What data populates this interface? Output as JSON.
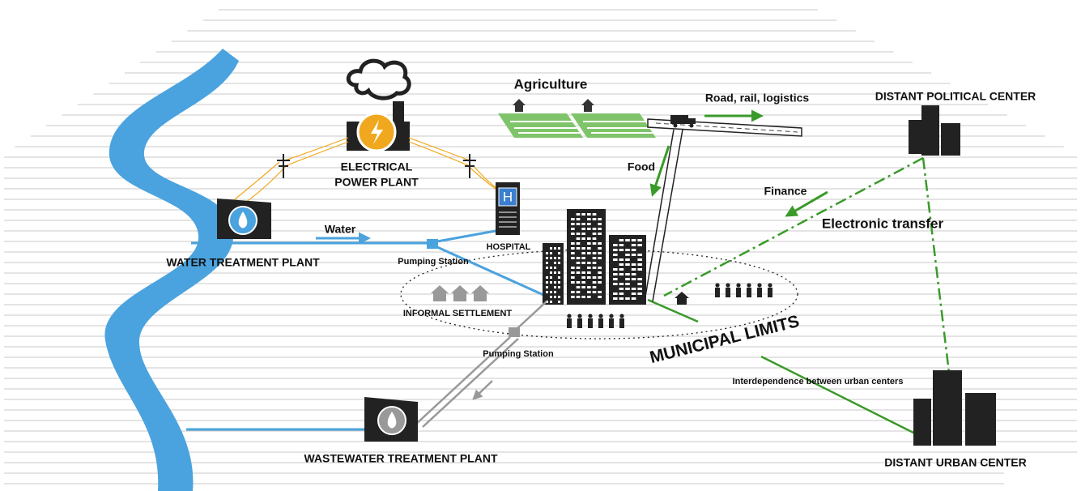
{
  "nodes": {
    "agriculture": "Agriculture",
    "road": "Road, rail, logistics",
    "political_center": "DISTANT POLITICAL CENTER",
    "power_plant": [
      "ELECTRICAL",
      "POWER PLANT"
    ],
    "hospital_sign": "H",
    "hospital": "HOSPITAL",
    "water_plant": "WATER TREATMENT PLANT",
    "pumping_station_1": "Pumping Station",
    "pumping_station_2": "Pumping Station",
    "informal_settlement": "INFORMAL SETTLEMENT",
    "municipal_limits": "MUNICIPAL LIMITS",
    "wastewater_plant": "WASTEWATER TREATMENT PLANT",
    "urban_center": "DISTANT URBAN CENTER"
  },
  "flows": {
    "food": "Food",
    "finance": "Finance",
    "electronic": "Electronic transfer",
    "water": "Water",
    "interdependence": "Interdependence between urban centers"
  }
}
